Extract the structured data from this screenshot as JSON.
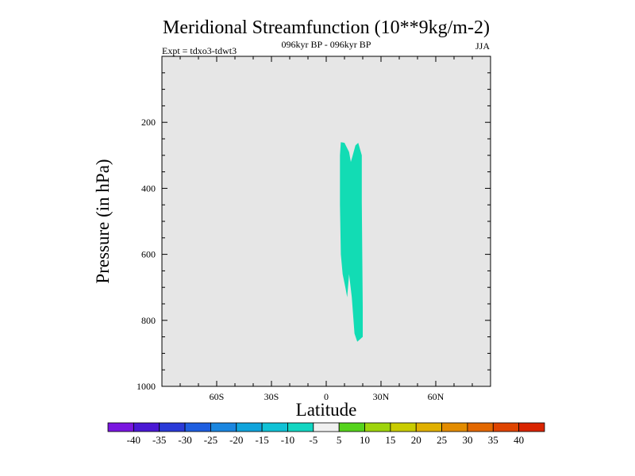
{
  "chart_data": {
    "type": "heatmap",
    "title": "Meridional Streamfunction (10**9kg/m-2)",
    "subtitle": "096kyr BP - 096kyr BP",
    "experiment": "Expt = tdxo3-tdwt3",
    "season": "JJA",
    "xlabel": "Latitude",
    "ylabel": "Pressure (in hPa)",
    "xlim": [
      -90,
      90
    ],
    "ylim": [
      1000,
      0
    ],
    "x_ticks": [
      {
        "value": -60,
        "label": "60S"
      },
      {
        "value": -30,
        "label": "30S"
      },
      {
        "value": 0,
        "label": "0"
      },
      {
        "value": 30,
        "label": "30N"
      },
      {
        "value": 60,
        "label": "60N"
      }
    ],
    "y_ticks": [
      {
        "value": 200,
        "label": "200"
      },
      {
        "value": 400,
        "label": "400"
      },
      {
        "value": 600,
        "label": "600"
      },
      {
        "value": 800,
        "label": "800"
      },
      {
        "value": 1000,
        "label": "1000"
      }
    ],
    "background_color": "#e6e6e6",
    "contour_levels": [
      -40,
      -35,
      -30,
      -25,
      -20,
      -15,
      -10,
      -5,
      5,
      10,
      15,
      20,
      25,
      30,
      35,
      40
    ],
    "colorbar_colors": [
      "#7a16e0",
      "#4a18d4",
      "#2a3ad8",
      "#1e5ee0",
      "#1a86e0",
      "#10a4dc",
      "#10c2d6",
      "#12d6c2",
      "#f0f0f0",
      "#55d31c",
      "#9ed40c",
      "#c9cc00",
      "#e0b000",
      "#e38c00",
      "#e36800",
      "#df4400",
      "#d92400"
    ],
    "filled_regions": [
      {
        "range": [
          -10,
          -5
        ],
        "color": "#12dcb4",
        "outline": [
          [
            8.0,
            260
          ],
          [
            10.0,
            262
          ],
          [
            12.5,
            290
          ],
          [
            13.5,
            320
          ],
          [
            14.5,
            300
          ],
          [
            16.0,
            270
          ],
          [
            17.5,
            262
          ],
          [
            19.5,
            300
          ],
          [
            19.5,
            440
          ],
          [
            20.0,
            760
          ],
          [
            20.0,
            850
          ],
          [
            17.0,
            865
          ],
          [
            15.5,
            840
          ],
          [
            14.0,
            730
          ],
          [
            12.5,
            660
          ],
          [
            11.5,
            730
          ],
          [
            10.5,
            700
          ],
          [
            9.0,
            660
          ],
          [
            8.0,
            600
          ],
          [
            7.5,
            450
          ],
          [
            7.5,
            300
          ]
        ]
      }
    ]
  }
}
